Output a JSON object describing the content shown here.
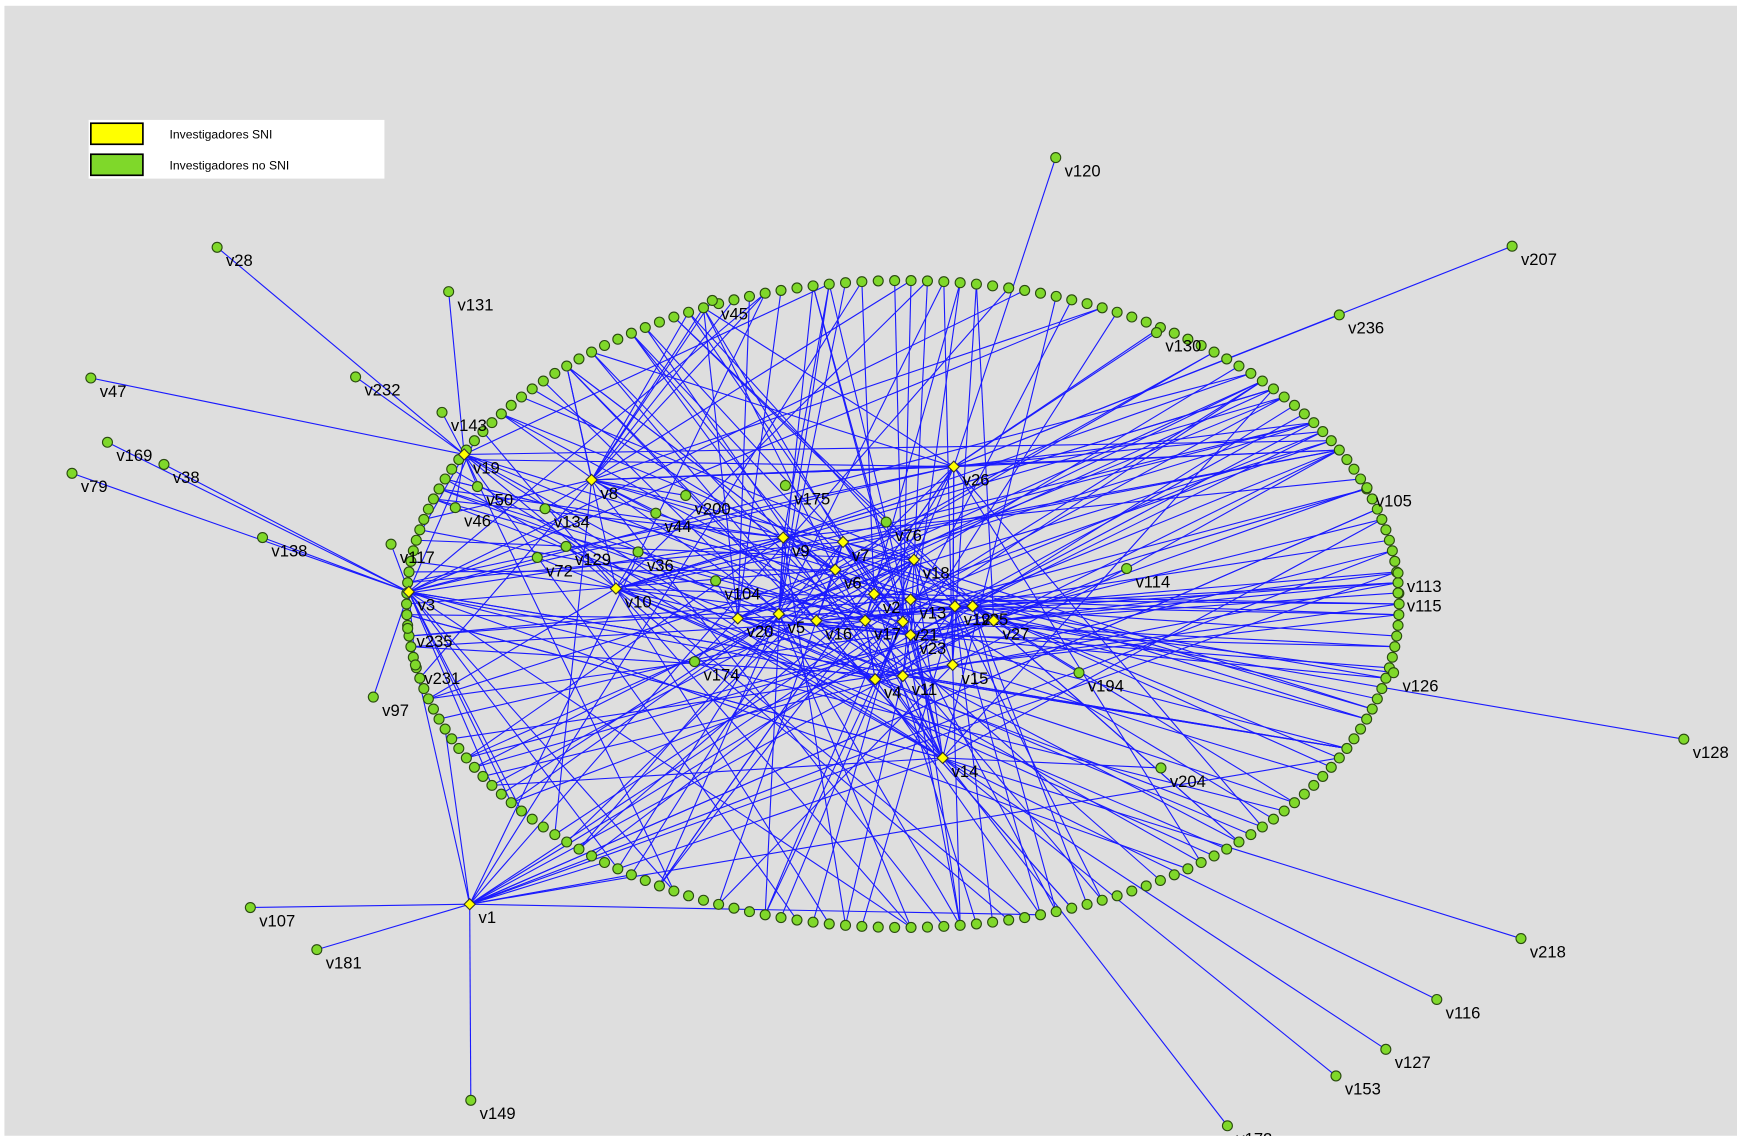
{
  "legend": [
    {
      "label": "Investigadores SNI",
      "sni": true
    },
    {
      "label": "Investigadores no SNI",
      "sni": false
    }
  ],
  "nodes": [
    {
      "label": "v120",
      "sni": false
    },
    {
      "label": "v207",
      "sni": false
    },
    {
      "label": "v28",
      "sni": false
    },
    {
      "label": "v131",
      "sni": false
    },
    {
      "label": "v236",
      "sni": false
    },
    {
      "label": "v47",
      "sni": false
    },
    {
      "label": "v232",
      "sni": false
    },
    {
      "label": "v143",
      "sni": false
    },
    {
      "label": "v169",
      "sni": false
    },
    {
      "label": "v38",
      "sni": false
    },
    {
      "label": "v79",
      "sni": false
    },
    {
      "label": "v19",
      "sni": true
    },
    {
      "label": "v8",
      "sni": true
    },
    {
      "label": "v26",
      "sni": true
    },
    {
      "label": "v50",
      "sni": false
    },
    {
      "label": "v46",
      "sni": false
    },
    {
      "label": "v134",
      "sni": false
    },
    {
      "label": "v200",
      "sni": false
    },
    {
      "label": "v44",
      "sni": false
    },
    {
      "label": "v175",
      "sni": false
    },
    {
      "label": "v76",
      "sni": false
    },
    {
      "label": "v9",
      "sni": true
    },
    {
      "label": "v7",
      "sni": true
    },
    {
      "label": "v138",
      "sni": false
    },
    {
      "label": "v117",
      "sni": false
    },
    {
      "label": "v129",
      "sni": false
    },
    {
      "label": "v72",
      "sni": false
    },
    {
      "label": "v36",
      "sni": false
    },
    {
      "label": "v18",
      "sni": true
    },
    {
      "label": "v6",
      "sni": true
    },
    {
      "label": "v114",
      "sni": false
    },
    {
      "label": "v3",
      "sni": true
    },
    {
      "label": "v10",
      "sni": true
    },
    {
      "label": "v104",
      "sni": false
    },
    {
      "label": "v2",
      "sni": true
    },
    {
      "label": "v13",
      "sni": true
    },
    {
      "label": "v12",
      "sni": true
    },
    {
      "label": "v20",
      "sni": true
    },
    {
      "label": "v5",
      "sni": true
    },
    {
      "label": "v16",
      "sni": true
    },
    {
      "label": "v17",
      "sni": true
    },
    {
      "label": "v21",
      "sni": true
    },
    {
      "label": "v23",
      "sni": true
    },
    {
      "label": "v25",
      "sni": true
    },
    {
      "label": "v27",
      "sni": true
    },
    {
      "label": "v235",
      "sni": false
    },
    {
      "label": "v231",
      "sni": false
    },
    {
      "label": "v174",
      "sni": false
    },
    {
      "label": "v4",
      "sni": true
    },
    {
      "label": "v11",
      "sni": true
    },
    {
      "label": "v15",
      "sni": true
    },
    {
      "label": "v194",
      "sni": false
    },
    {
      "label": "v126",
      "sni": false
    },
    {
      "label": "v97",
      "sni": false
    },
    {
      "label": "v128",
      "sni": false
    },
    {
      "label": "v14",
      "sni": true
    },
    {
      "label": "v204",
      "sni": false
    },
    {
      "label": "v107",
      "sni": false
    },
    {
      "label": "v1",
      "sni": true
    },
    {
      "label": "v181",
      "sni": false
    },
    {
      "label": "v218",
      "sni": false
    },
    {
      "label": "v116",
      "sni": false
    },
    {
      "label": "v127",
      "sni": false
    },
    {
      "label": "v153",
      "sni": false
    },
    {
      "label": "v149",
      "sni": false
    },
    {
      "label": "v172",
      "sni": false
    },
    {
      "label": "v105",
      "sni": false
    },
    {
      "label": "v115",
      "sni": false
    },
    {
      "label": "v130",
      "sni": false
    },
    {
      "label": "v45",
      "sni": false
    },
    {
      "label": "v113",
      "sni": false
    }
  ]
}
